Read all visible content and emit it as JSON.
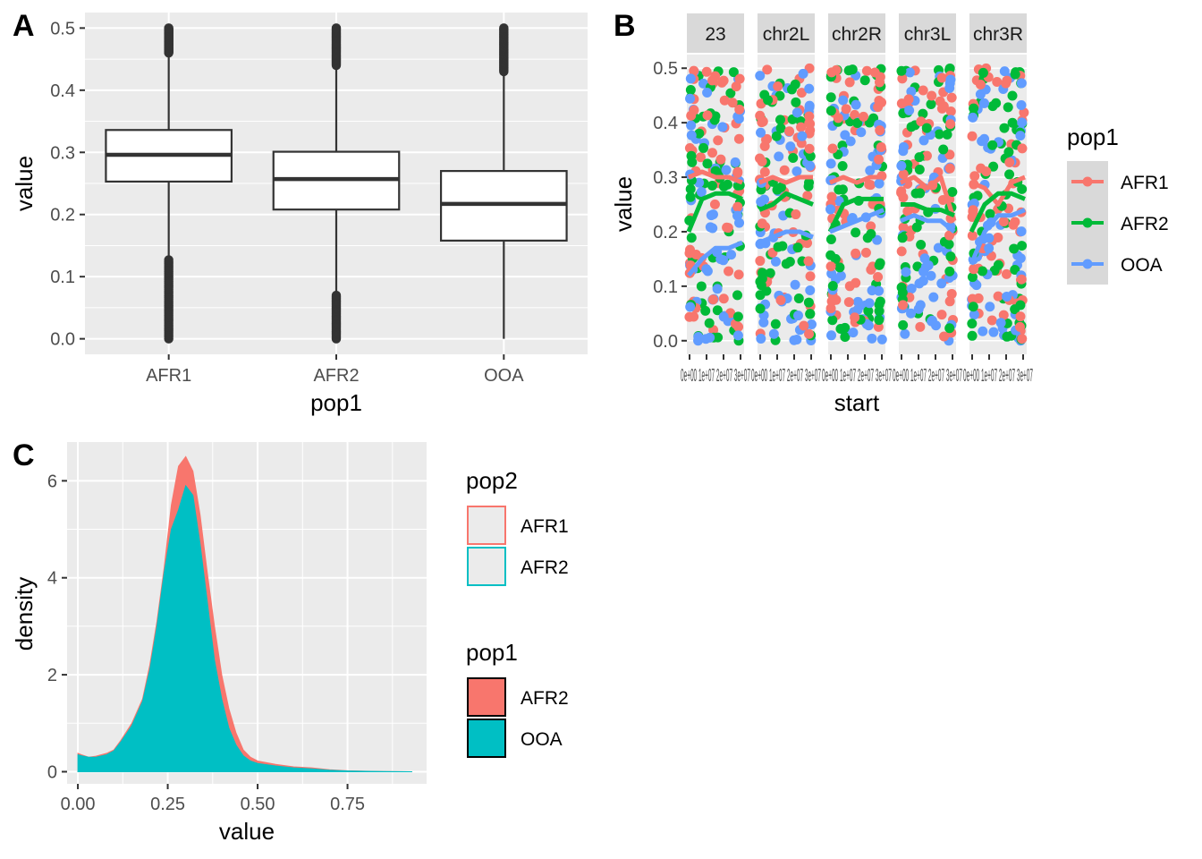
{
  "chart_data": [
    {
      "panel": "A",
      "type": "boxplot",
      "xlabel": "pop1",
      "ylabel": "value",
      "ylim": [
        0,
        0.5
      ],
      "yticks": [
        "0.0",
        "0.1",
        "0.2",
        "0.3",
        "0.4",
        "0.5"
      ],
      "categories": [
        "AFR1",
        "AFR2",
        "OOA"
      ],
      "boxes": [
        {
          "name": "AFR1",
          "min": 0.0,
          "q1": 0.253,
          "median": 0.296,
          "q3": 0.336,
          "max": 0.5,
          "lower_whisker": 0.127,
          "upper_whisker": 0.46
        },
        {
          "name": "AFR2",
          "min": 0.0,
          "q1": 0.208,
          "median": 0.257,
          "q3": 0.301,
          "max": 0.5,
          "lower_whisker": 0.07,
          "upper_whisker": 0.44
        },
        {
          "name": "OOA",
          "min": 0.0,
          "q1": 0.158,
          "median": 0.217,
          "q3": 0.27,
          "max": 0.5,
          "lower_whisker": 0.0,
          "upper_whisker": 0.43
        }
      ]
    },
    {
      "panel": "B",
      "type": "scatter",
      "xlabel": "start",
      "ylabel": "value",
      "ylim": [
        0,
        0.5
      ],
      "yticks": [
        "0.0",
        "0.1",
        "0.2",
        "0.3",
        "0.4",
        "0.5"
      ],
      "facets": [
        "23",
        "chr2L",
        "chr2R",
        "chr3L",
        "chr3R"
      ],
      "xtick_text": "0e+00 1e+07 2e+07 3e+07",
      "legend_title": "pop1",
      "series": [
        {
          "name": "AFR1",
          "color": "#F8766D",
          "smooth": [
            [
              0.3,
              0.31,
              0.3,
              0.3,
              0.29
            ],
            [
              0.29,
              0.3,
              0.29,
              0.3,
              0.3
            ],
            [
              0.29,
              0.3,
              0.29,
              0.3,
              0.3
            ],
            [
              0.29,
              0.3,
              0.28,
              0.3,
              0.22
            ],
            [
              0.29,
              0.28,
              0.25,
              0.29,
              0.3
            ]
          ]
        },
        {
          "name": "AFR2",
          "color": "#00BA38",
          "smooth": [
            [
              0.2,
              0.26,
              0.27,
              0.27,
              0.26
            ],
            [
              0.24,
              0.25,
              0.27,
              0.26,
              0.25
            ],
            [
              0.2,
              0.25,
              0.26,
              0.26,
              0.26
            ],
            [
              0.25,
              0.25,
              0.24,
              0.24,
              0.23
            ],
            [
              0.2,
              0.25,
              0.27,
              0.27,
              0.26
            ]
          ]
        },
        {
          "name": "OOA",
          "color": "#619CFF",
          "smooth": [
            [
              0.12,
              0.15,
              0.17,
              0.17,
              0.18
            ],
            [
              0.18,
              0.19,
              0.2,
              0.2,
              0.19
            ],
            [
              0.2,
              0.21,
              0.22,
              0.23,
              0.24
            ],
            [
              0.22,
              0.23,
              0.22,
              0.22,
              0.2
            ],
            [
              0.14,
              0.2,
              0.23,
              0.23,
              0.24
            ]
          ]
        }
      ]
    },
    {
      "panel": "C",
      "type": "area",
      "xlabel": "value",
      "ylabel": "density",
      "xlim": [
        -0.03,
        0.97
      ],
      "ylim": [
        -0.25,
        6.8
      ],
      "xticks": [
        "0.00",
        "0.25",
        "0.50",
        "0.75"
      ],
      "yticks": [
        "0",
        "2",
        "4",
        "6"
      ],
      "x": [
        0.0,
        0.01,
        0.03,
        0.05,
        0.08,
        0.1,
        0.12,
        0.15,
        0.18,
        0.2,
        0.22,
        0.24,
        0.26,
        0.28,
        0.3,
        0.32,
        0.34,
        0.36,
        0.38,
        0.4,
        0.42,
        0.44,
        0.46,
        0.48,
        0.5,
        0.55,
        0.6,
        0.65,
        0.7,
        0.75,
        0.8,
        0.85,
        0.93
      ],
      "series": [
        {
          "name": "AFR2",
          "color": "#F8766D",
          "values": [
            0.38,
            0.35,
            0.3,
            0.32,
            0.38,
            0.45,
            0.65,
            1.0,
            1.5,
            2.2,
            3.1,
            4.2,
            5.5,
            6.3,
            6.5,
            6.2,
            5.3,
            4.1,
            3.0,
            2.0,
            1.3,
            0.8,
            0.45,
            0.3,
            0.22,
            0.15,
            0.1,
            0.08,
            0.04,
            0.02,
            0.01,
            0.005,
            0.0
          ]
        },
        {
          "name": "OOA",
          "color": "#00BFC4",
          "values": [
            0.35,
            0.33,
            0.3,
            0.3,
            0.35,
            0.43,
            0.62,
            0.95,
            1.45,
            2.1,
            3.0,
            4.1,
            5.0,
            5.4,
            5.9,
            5.7,
            4.7,
            3.5,
            2.3,
            1.5,
            0.9,
            0.55,
            0.33,
            0.22,
            0.17,
            0.12,
            0.08,
            0.06,
            0.03,
            0.015,
            0.008,
            0.004,
            0.0
          ]
        }
      ],
      "legends": [
        {
          "title": "pop2",
          "items": [
            {
              "label": "AFR1",
              "color": "#F8766D"
            },
            {
              "label": "AFR2",
              "color": "#00BFC4"
            }
          ]
        },
        {
          "title": "pop1",
          "items": [
            {
              "label": "AFR2",
              "color": "#F8766D"
            },
            {
              "label": "OOA",
              "color": "#00BFC4"
            }
          ]
        }
      ]
    }
  ],
  "labels": {
    "panel_a": "A",
    "panel_b": "B",
    "panel_c": "C"
  }
}
